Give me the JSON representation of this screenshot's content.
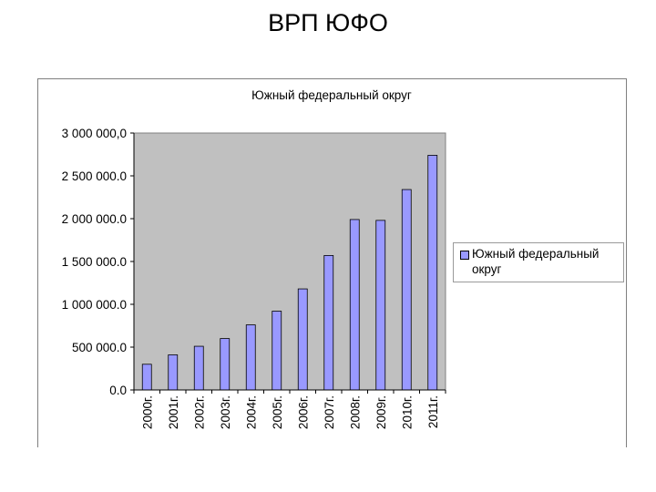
{
  "slide": {
    "title": "ВРП ЮФО"
  },
  "colors": {
    "bar": "#9999ff",
    "plot_area": "#c0c0c0",
    "bar_stroke": "#000000"
  },
  "chart_data": {
    "type": "bar",
    "title": "Южный федеральный округ",
    "xlabel": "",
    "ylabel": "",
    "categories": [
      "2000г.",
      "2001г.",
      "2002г.",
      "2003г.",
      "2004г.",
      "2005г.",
      "2006г.",
      "2007г.",
      "2008г.",
      "2009г.",
      "2010г.",
      "2011г."
    ],
    "series": [
      {
        "name": "Южный федеральный округ",
        "values": [
          300000,
          410000,
          510000,
          600000,
          760000,
          920000,
          1180000,
          1570000,
          1990000,
          1980000,
          2340000,
          2740000
        ]
      }
    ],
    "ylim": [
      0,
      3000000
    ],
    "yticks": [
      0,
      500000,
      1000000,
      1500000,
      2000000,
      2500000,
      3000000
    ],
    "ytick_labels": [
      "0.0",
      "500 000.0",
      "1 000 000.0",
      "1 500 000.0",
      "2 000 000.0",
      "2 500 000.0",
      "3 000 000,0"
    ],
    "grid": false,
    "legend_position": "right"
  }
}
